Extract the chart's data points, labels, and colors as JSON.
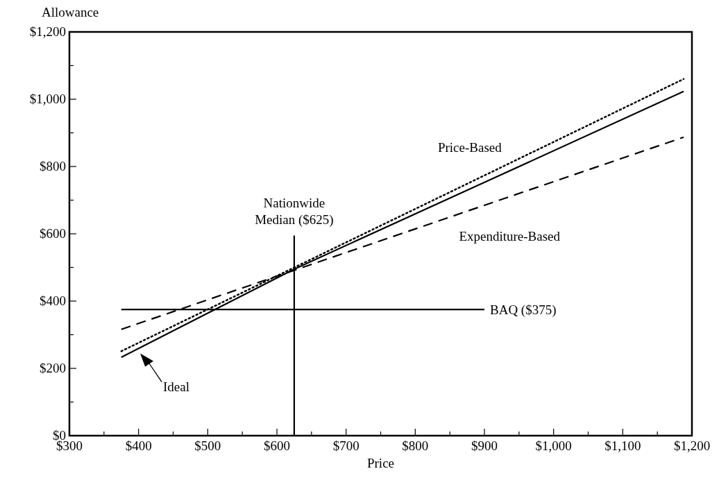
{
  "chart_data": {
    "type": "line",
    "xlabel": "Price",
    "ylabel": "Allowance",
    "xlim": [
      300,
      1200
    ],
    "ylim": [
      0,
      1200
    ],
    "xticks": [
      {
        "value": 300,
        "label": "$300"
      },
      {
        "value": 350,
        "label": null
      },
      {
        "value": 400,
        "label": "$400"
      },
      {
        "value": 450,
        "label": null
      },
      {
        "value": 500,
        "label": "$500"
      },
      {
        "value": 550,
        "label": null
      },
      {
        "value": 600,
        "label": "$600"
      },
      {
        "value": 650,
        "label": null
      },
      {
        "value": 700,
        "label": "$700"
      },
      {
        "value": 750,
        "label": null
      },
      {
        "value": 800,
        "label": "$800"
      },
      {
        "value": 850,
        "label": null
      },
      {
        "value": 900,
        "label": "$900"
      },
      {
        "value": 950,
        "label": null
      },
      {
        "value": 1000,
        "label": "$1,000"
      },
      {
        "value": 1050,
        "label": null
      },
      {
        "value": 1100,
        "label": "$1,100"
      },
      {
        "value": 1150,
        "label": null
      },
      {
        "value": 1200,
        "label": "$1,200"
      }
    ],
    "yticks": [
      {
        "value": 0,
        "label": "$0"
      },
      {
        "value": 100,
        "label": null
      },
      {
        "value": 200,
        "label": "$200"
      },
      {
        "value": 300,
        "label": null
      },
      {
        "value": 400,
        "label": "$400"
      },
      {
        "value": 500,
        "label": null
      },
      {
        "value": 600,
        "label": "$600"
      },
      {
        "value": 700,
        "label": null
      },
      {
        "value": 800,
        "label": "$800"
      },
      {
        "value": 900,
        "label": null
      },
      {
        "value": 1000,
        "label": "$1,000"
      },
      {
        "value": 1100,
        "label": null
      },
      {
        "value": 1200,
        "label": "$1,200"
      }
    ],
    "grid": false,
    "marker": "none",
    "series": [
      {
        "name": "Ideal",
        "color": "#000000",
        "line_style": "solid",
        "x": [
          375,
          625,
          1188
        ],
        "values": [
          233,
          495,
          1023
        ]
      },
      {
        "name": "Price-Based",
        "color": "#000000",
        "line_style": "dotted",
        "x": [
          375,
          1188
        ],
        "values": [
          251,
          1060
        ]
      },
      {
        "name": "Expenditure-Based",
        "color": "#000000",
        "line_style": "dashed",
        "x": [
          375,
          1188
        ],
        "values": [
          316,
          887
        ]
      },
      {
        "name": "BAQ ($375)",
        "color": "#000000",
        "line_style": "solid",
        "x": [
          375,
          900
        ],
        "values": [
          375,
          375
        ]
      },
      {
        "name": "Nationwide Median ($625)",
        "color": "#000000",
        "line_style": "solid",
        "x": [
          625,
          625
        ],
        "values": [
          0,
          595
        ]
      }
    ]
  }
}
